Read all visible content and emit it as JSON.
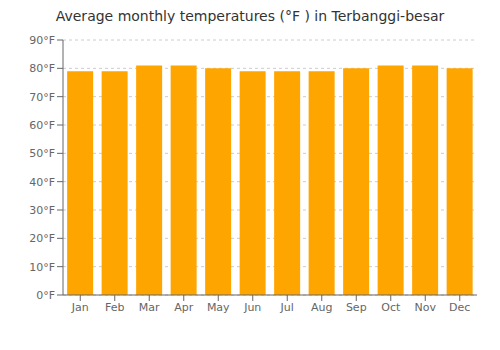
{
  "chart_data": {
    "type": "bar",
    "title": "Average monthly temperatures (°F ) in Terbanggi-besar",
    "categories": [
      "Jan",
      "Feb",
      "Mar",
      "Apr",
      "May",
      "Jun",
      "Jul",
      "Aug",
      "Sep",
      "Oct",
      "Nov",
      "Dec"
    ],
    "values": [
      79,
      79,
      81,
      81,
      80,
      79,
      79,
      79,
      80,
      81,
      81,
      80
    ],
    "color": "#FFA500",
    "ylim": [
      0,
      90
    ],
    "yticks": [
      {
        "value": 0,
        "label": "0°F"
      },
      {
        "value": 10,
        "label": "10°F"
      },
      {
        "value": 20,
        "label": "20°F"
      },
      {
        "value": 30,
        "label": "30°F"
      },
      {
        "value": 40,
        "label": "40°F"
      },
      {
        "value": 50,
        "label": "50°F"
      },
      {
        "value": 60,
        "label": "60°F"
      },
      {
        "value": 70,
        "label": "70°F"
      },
      {
        "value": 80,
        "label": "80°F"
      },
      {
        "value": 90,
        "label": "90°F"
      }
    ],
    "grid": true
  }
}
